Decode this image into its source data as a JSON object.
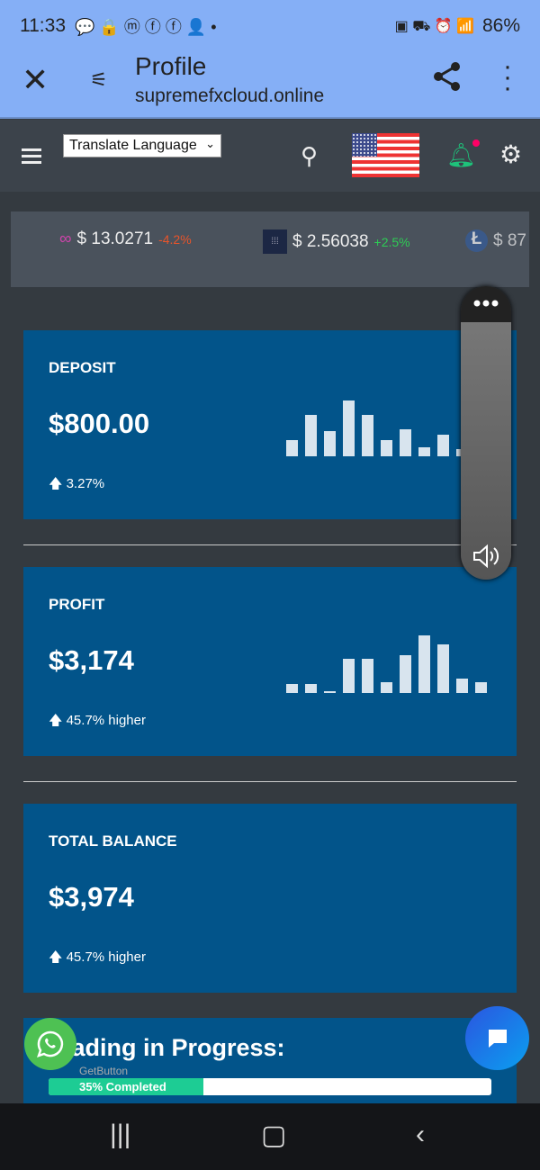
{
  "status": {
    "time": "11:33",
    "battery": "86%"
  },
  "appbar": {
    "title": "Profile",
    "url": "supremefxcloud.online"
  },
  "nav": {
    "translate": "Translate Language"
  },
  "ticker": [
    {
      "price": "$ 13.0271",
      "change": "-4.2%",
      "change_color": "#e8542a"
    },
    {
      "price": "$ 2.56038",
      "change": "+2.5%",
      "change_color": "#2ecc55"
    },
    {
      "price": "$ 87",
      "change": ""
    }
  ],
  "cards": [
    {
      "label": "DEPOSIT",
      "value": "$800.00",
      "change": "3.27%",
      "spark": [
        18,
        46,
        28,
        62,
        46,
        18,
        30,
        10,
        24,
        8
      ]
    },
    {
      "label": "PROFIT",
      "value": "$3,174",
      "change": "45.7% higher",
      "spark": [
        10,
        10,
        2,
        38,
        38,
        12,
        42,
        64,
        54,
        16,
        12
      ]
    },
    {
      "label": "TOTAL BALANCE",
      "value": "$3,974",
      "change": "45.7% higher"
    }
  ],
  "trading": {
    "title": "Trading in Progress:",
    "progress_percent": 35,
    "progress_label": "35% Completed"
  },
  "widgets": {
    "getbutton": "GetButton"
  },
  "colors": {
    "card": "#02548a",
    "progress": "#1dcc94",
    "accent_bell": "#1ec27a"
  }
}
